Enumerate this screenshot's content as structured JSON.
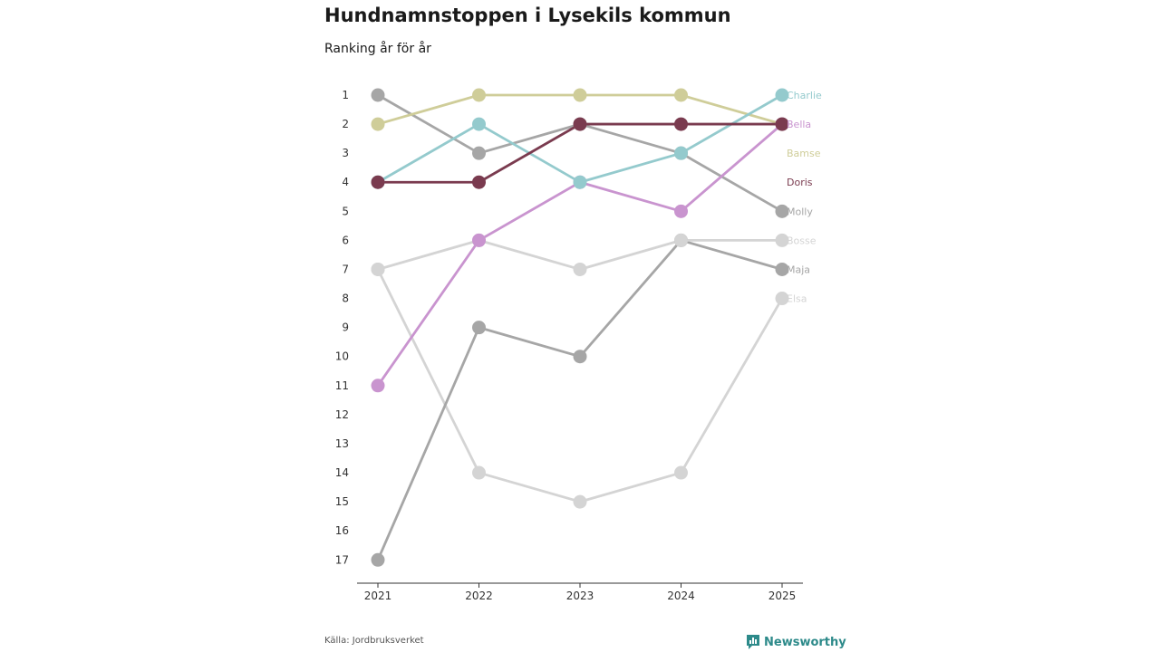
{
  "title": "Hundnamnstoppen i Lysekils kommun",
  "subtitle": "Ranking år för år",
  "source": "Källa: Jordbruksverket",
  "brand": "Newsworthy",
  "chart_data": {
    "type": "line",
    "subtype": "bump",
    "x": [
      "2021",
      "2022",
      "2023",
      "2024",
      "2025"
    ],
    "yticks": [
      1,
      2,
      3,
      4,
      5,
      6,
      7,
      8,
      9,
      10,
      11,
      12,
      13,
      14,
      15,
      16,
      17
    ],
    "ylim": [
      1,
      17
    ],
    "y_inverted": true,
    "series": [
      {
        "name": "Elsa",
        "color": "#d4d4d4",
        "values": [
          7,
          14,
          15,
          14,
          8
        ]
      },
      {
        "name": "Maja",
        "color": "#a6a6a6",
        "values": [
          17,
          9,
          10,
          6,
          7
        ]
      },
      {
        "name": "Bosse",
        "color": "#d4d4d4",
        "values": [
          7,
          6,
          7,
          6,
          6
        ]
      },
      {
        "name": "Molly",
        "color": "#a6a6a6",
        "values": [
          1,
          3,
          2,
          3,
          5
        ]
      },
      {
        "name": "Bamse",
        "color": "#cfcd99",
        "values": [
          2,
          1,
          1,
          1,
          2
        ]
      },
      {
        "name": "Bella",
        "color": "#c994cf",
        "values": [
          11,
          6,
          4,
          5,
          2
        ]
      },
      {
        "name": "Charlie",
        "color": "#94cacd",
        "values": [
          4,
          2,
          4,
          3,
          1
        ]
      },
      {
        "name": "Doris",
        "color": "#7a3b4f",
        "values": [
          4,
          4,
          2,
          2,
          2
        ]
      }
    ]
  }
}
